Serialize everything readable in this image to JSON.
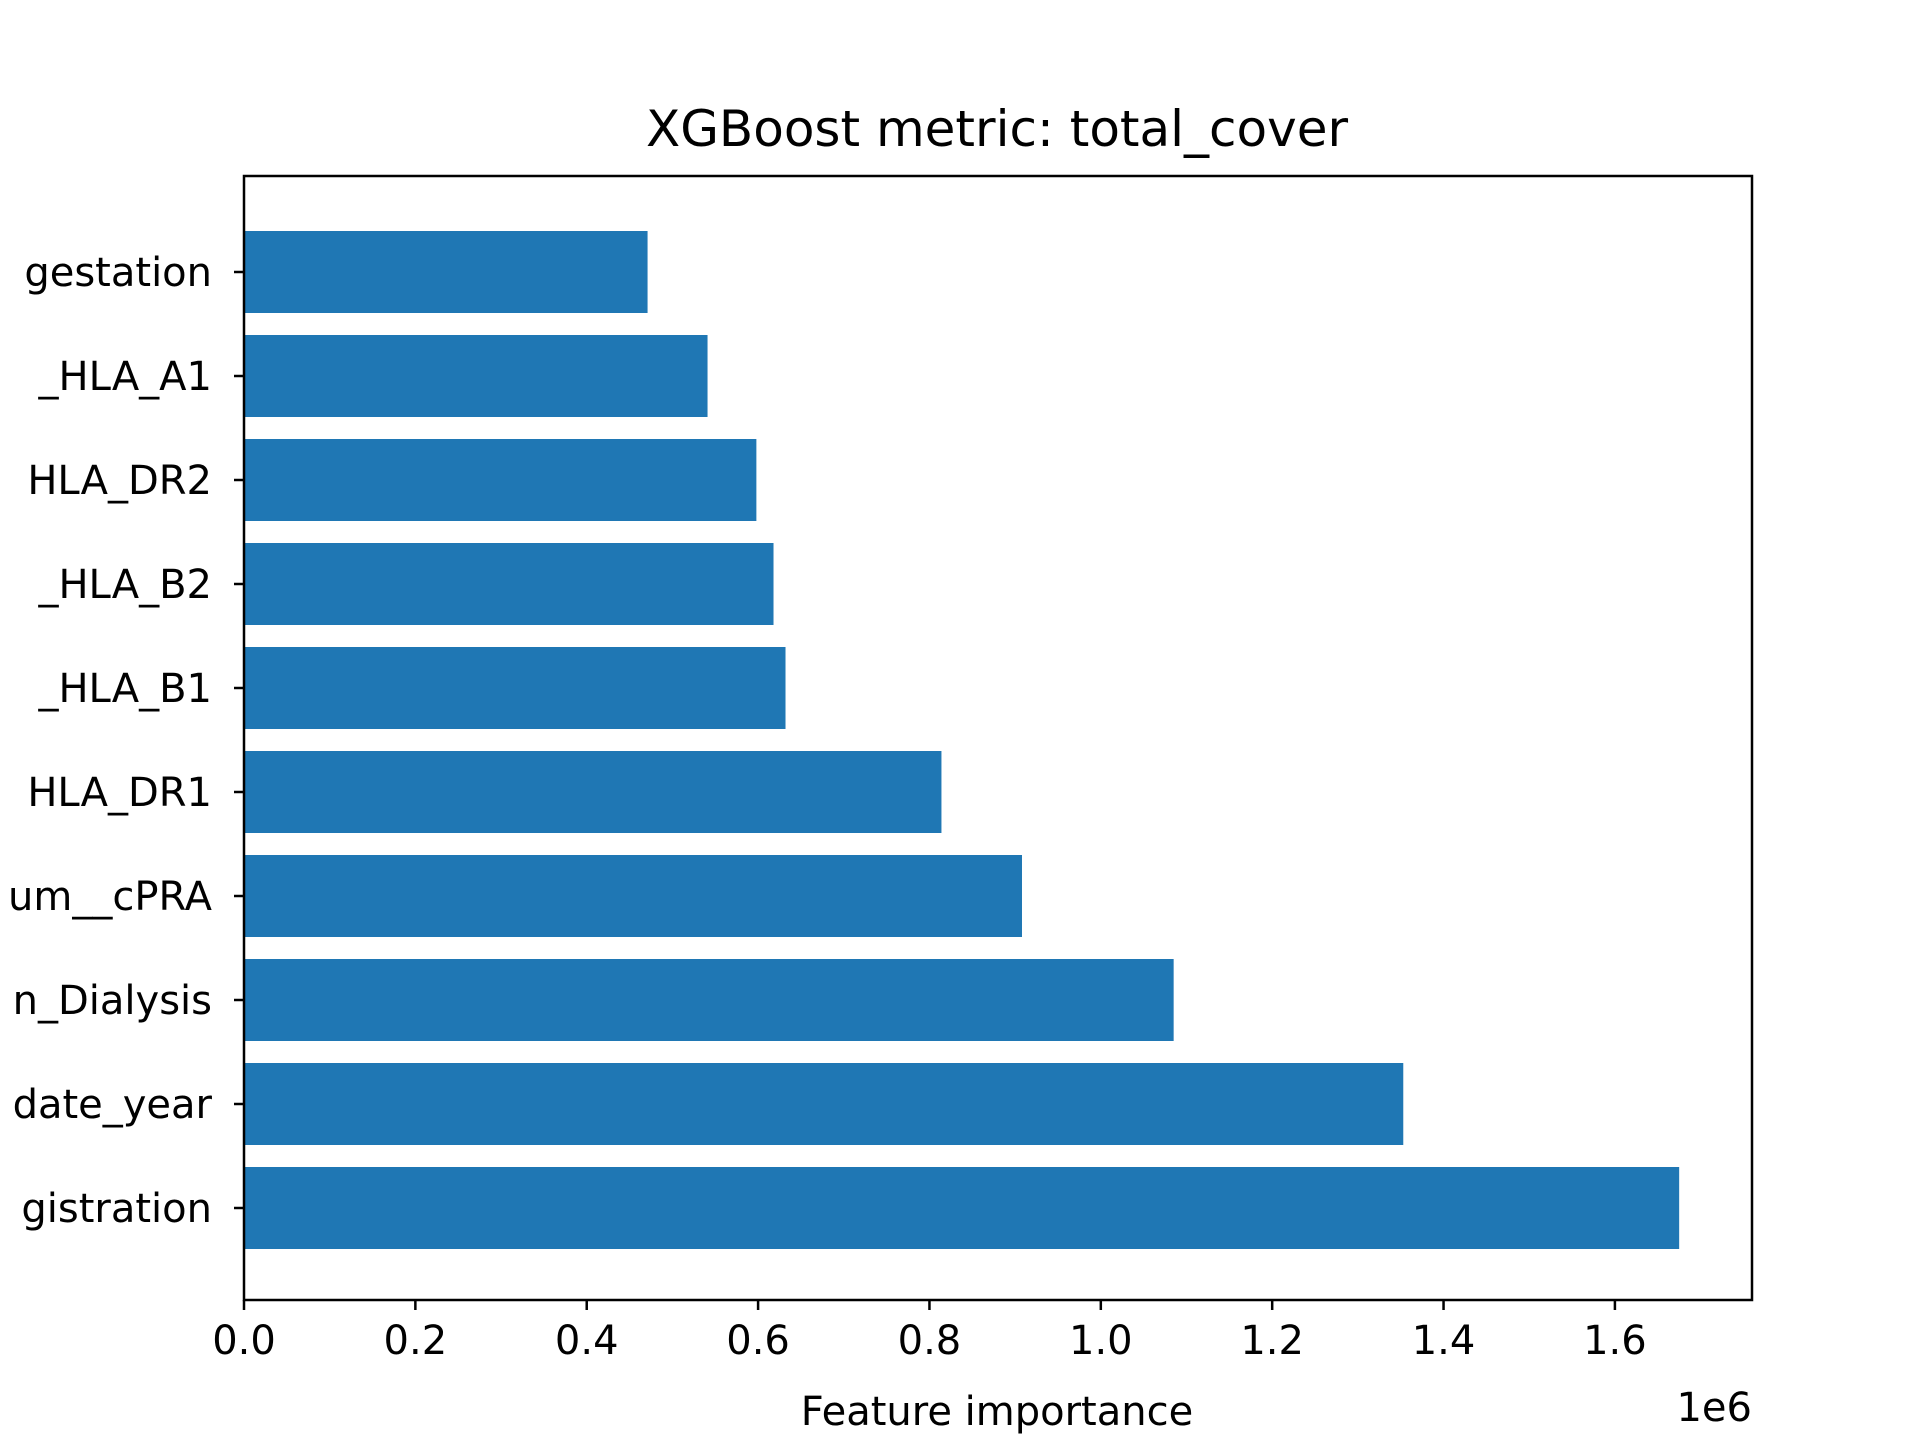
{
  "chart_data": {
    "type": "bar",
    "orientation": "horizontal",
    "title": "XGBoost metric: total_cover",
    "xlabel": "Feature importance",
    "ylabel": "",
    "x_offset_label": "1e6",
    "xlim": [
      0,
      1.76
    ],
    "x_ticks": [
      "0.0",
      "0.2",
      "0.4",
      "0.6",
      "0.8",
      "1.0",
      "1.2",
      "1.4",
      "1.6"
    ],
    "categories": [
      "gistration",
      "date_year",
      "n_Dialysis",
      "um__cPRA",
      "HLA_DR1",
      "_HLA_B1",
      "_HLA_B2",
      "HLA_DR2",
      "_HLA_A1",
      "gestation"
    ],
    "values": [
      1.675,
      1.353,
      1.085,
      0.908,
      0.814,
      0.632,
      0.618,
      0.598,
      0.541,
      0.471
    ],
    "bar_color": "#1f77b4",
    "grid": false,
    "legend": "none"
  }
}
